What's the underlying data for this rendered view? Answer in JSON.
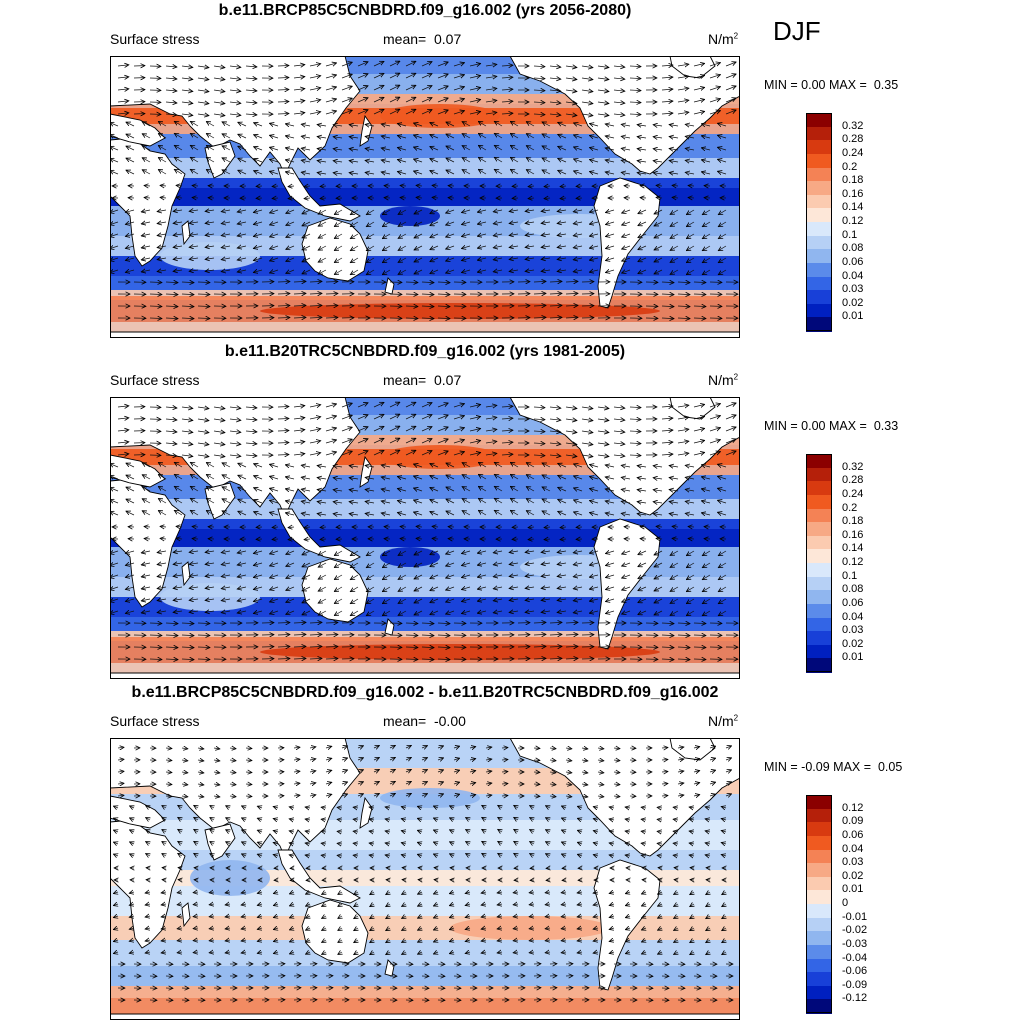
{
  "season": "DJF",
  "continent_fill": "#ffffff",
  "panels": [
    {
      "id": "future",
      "title": "b.e11.BRCP85C5CNBDRD.f09_g16.002 (yrs 2056-2080)",
      "variable": "Surface stress",
      "mean_label": "mean=",
      "mean_value": "0.07",
      "units": "N/m",
      "units_exp": "2",
      "min_label": "MIN =",
      "min_value": "0.00",
      "max_label": "MAX =",
      "max_value": "0.35",
      "colorbar": {
        "labels": [
          "0.32",
          "0.28",
          "0.24",
          "0.2",
          "0.18",
          "0.16",
          "0.14",
          "0.12",
          "0.1",
          "0.08",
          "0.06",
          "0.04",
          "0.03",
          "0.02",
          "0.01"
        ],
        "colors": [
          "#8b0000",
          "#b5200a",
          "#d83a10",
          "#f05a20",
          "#f48255",
          "#f7a985",
          "#fbcbb0",
          "#fde7d8",
          "#d9e8fb",
          "#b6d0f5",
          "#90b6ef",
          "#5b8bea",
          "#3365e6",
          "#1840d8",
          "#0020c0",
          "#00087a"
        ]
      }
    },
    {
      "id": "historical",
      "title": "b.e11.B20TRC5CNBDRD.f09_g16.002 (yrs 1981-2005)",
      "variable": "Surface stress",
      "mean_label": "mean=",
      "mean_value": "0.07",
      "units": "N/m",
      "units_exp": "2",
      "min_label": "MIN =",
      "min_value": "0.00",
      "max_label": "MAX =",
      "max_value": "0.33",
      "colorbar": {
        "labels": [
          "0.32",
          "0.28",
          "0.24",
          "0.2",
          "0.18",
          "0.16",
          "0.14",
          "0.12",
          "0.1",
          "0.08",
          "0.06",
          "0.04",
          "0.03",
          "0.02",
          "0.01"
        ],
        "colors": [
          "#8b0000",
          "#b5200a",
          "#d83a10",
          "#f05a20",
          "#f48255",
          "#f7a985",
          "#fbcbb0",
          "#fde7d8",
          "#d9e8fb",
          "#b6d0f5",
          "#90b6ef",
          "#5b8bea",
          "#3365e6",
          "#1840d8",
          "#0020c0",
          "#00087a"
        ]
      }
    },
    {
      "id": "difference",
      "title": "b.e11.BRCP85C5CNBDRD.f09_g16.002 - b.e11.B20TRC5CNBDRD.f09_g16.002",
      "variable": "Surface stress",
      "mean_label": "mean=",
      "mean_value": "-0.00",
      "units": "N/m",
      "units_exp": "2",
      "min_label": "MIN =",
      "min_value": "-0.09",
      "max_label": "MAX =",
      "max_value": "0.05",
      "colorbar": {
        "labels": [
          "0.12",
          "0.09",
          "0.06",
          "0.04",
          "0.03",
          "0.02",
          "0.01",
          "0",
          "-0.01",
          "-0.02",
          "-0.03",
          "-0.04",
          "-0.06",
          "-0.09",
          "-0.12"
        ],
        "colors": [
          "#8b0000",
          "#b5200a",
          "#d83a10",
          "#f05a20",
          "#f48255",
          "#f7a985",
          "#fbcbb0",
          "#fde7d8",
          "#d9e8fb",
          "#b6d0f5",
          "#90b6ef",
          "#5b8bea",
          "#3365e6",
          "#1840d8",
          "#0020c0",
          "#00087a"
        ]
      }
    }
  ]
}
